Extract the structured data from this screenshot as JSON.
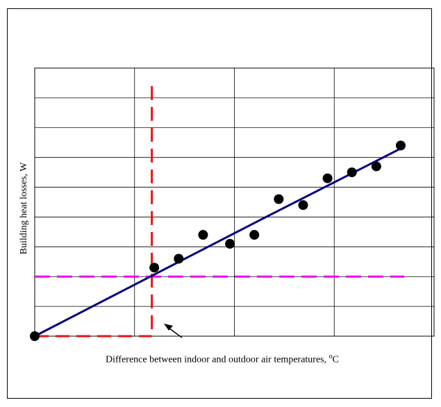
{
  "chart_data": {
    "type": "scatter",
    "xlabel_text": "Difference between indoor and outdoor air temperatures, ",
    "xlabel_unit_sup": "o",
    "xlabel_unit": "C",
    "ylabel": "Building heat losses, W",
    "xlim": [
      0,
      15
    ],
    "ylim": [
      0,
      9
    ],
    "grid": true,
    "points": [
      {
        "x": 0,
        "y": 0
      },
      {
        "x": 4.9,
        "y": 2.3
      },
      {
        "x": 5.9,
        "y": 2.6
      },
      {
        "x": 6.9,
        "y": 3.4
      },
      {
        "x": 8.0,
        "y": 3.1
      },
      {
        "x": 9.0,
        "y": 3.4
      },
      {
        "x": 10.0,
        "y": 4.6
      },
      {
        "x": 11.0,
        "y": 4.4
      },
      {
        "x": 12.0,
        "y": 5.3
      },
      {
        "x": 13.0,
        "y": 5.5
      },
      {
        "x": 14.0,
        "y": 5.7
      },
      {
        "x": 15.0,
        "y": 6.4
      }
    ],
    "fit_line": [
      {
        "x": 0,
        "y": 0
      },
      {
        "x": 9.0,
        "y": 3.8
      },
      {
        "x": 15.0,
        "y": 6.3
      }
    ],
    "balance_point_x": 4.8,
    "balance_level_y": 2.0,
    "colors": {
      "points": "#000000",
      "fit_line": "#000080",
      "vertical_dash": "#ee1111",
      "horizontal_dash": "#ee00ee",
      "grid": "#000000"
    }
  }
}
